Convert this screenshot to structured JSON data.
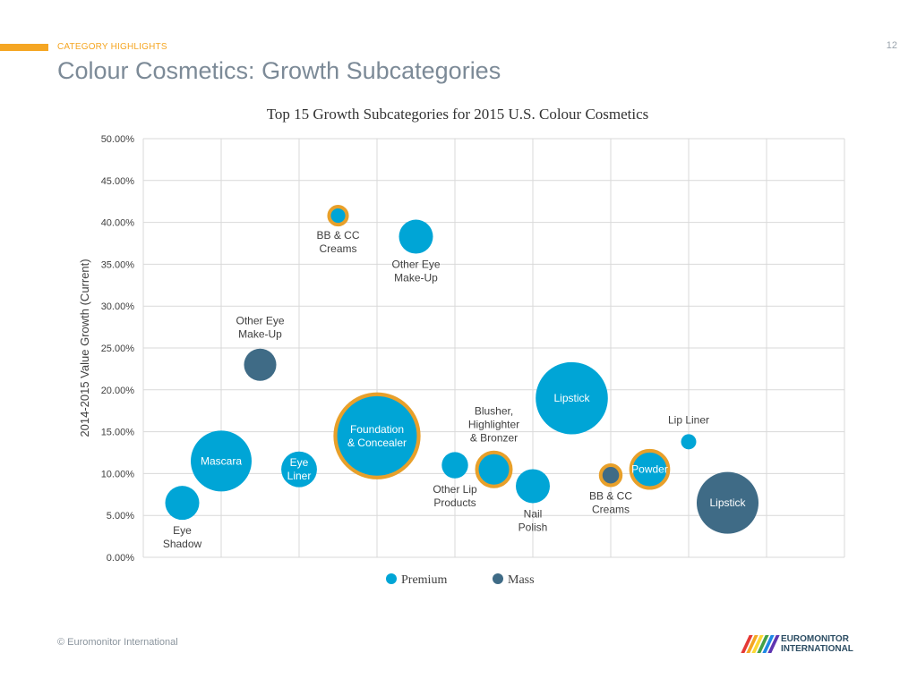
{
  "header": {
    "category": "CATEGORY HIGHLIGHTS",
    "title": "Colour Cosmetics: Growth Subcategories",
    "page_number": "12",
    "accent_color": "#F5A623"
  },
  "footer": {
    "copyright": "© Euromonitor International",
    "logo_line1": "EUROMONITOR",
    "logo_line2": "INTERNATIONAL"
  },
  "colors": {
    "premium": "#00A5D6",
    "mass": "#3F6B86",
    "highlight_ring": "#E8A02A",
    "grid": "#D9D9D9",
    "label": "#404040"
  },
  "chart_data": {
    "type": "bubble",
    "title": "Top 15 Growth Subcategories for 2015 U.S. Colour Cosmetics",
    "xlabel": "",
    "ylabel": "2014-2015 Value Growth (Current)",
    "ylim": [
      0,
      50
    ],
    "xlim": [
      0,
      9
    ],
    "y_ticks": [
      "0.00%",
      "5.00%",
      "10.00%",
      "15.00%",
      "20.00%",
      "25.00%",
      "30.00%",
      "35.00%",
      "40.00%",
      "45.00%",
      "50.00%"
    ],
    "grid": true,
    "legend": [
      "Premium",
      "Mass"
    ],
    "legend_position": "bottom",
    "points": [
      {
        "label": "Eye\nShadow",
        "x": 0.5,
        "y": 6.5,
        "size": 1.0,
        "segment": "Premium",
        "highlight": false,
        "label_pos": "below"
      },
      {
        "label": "Mascara",
        "x": 1.0,
        "y": 11.5,
        "size": 3.2,
        "segment": "Premium",
        "highlight": false,
        "label_pos": "inside"
      },
      {
        "label": "Other Eye\nMake-Up",
        "x": 1.5,
        "y": 23.0,
        "size": 0.9,
        "segment": "Mass",
        "highlight": false,
        "label_pos": "above"
      },
      {
        "label": "Eye\nLiner",
        "x": 2.0,
        "y": 10.5,
        "size": 1.1,
        "segment": "Premium",
        "highlight": false,
        "label_pos": "inside"
      },
      {
        "label": "BB & CC\nCreams",
        "x": 2.5,
        "y": 40.8,
        "size": 0.28,
        "segment": "Premium",
        "highlight": true,
        "label_pos": "below"
      },
      {
        "label": "Foundation\n& Concealer",
        "x": 3.0,
        "y": 14.5,
        "size": 6.0,
        "segment": "Premium",
        "highlight": true,
        "label_pos": "inside"
      },
      {
        "label": "Other Eye\nMake-Up",
        "x": 3.5,
        "y": 38.3,
        "size": 1.0,
        "segment": "Premium",
        "highlight": false,
        "label_pos": "below"
      },
      {
        "label": "Other Lip\nProducts",
        "x": 4.0,
        "y": 11.0,
        "size": 0.6,
        "segment": "Premium",
        "highlight": false,
        "label_pos": "below"
      },
      {
        "label": "Blusher,\nHighlighter\n& Bronzer",
        "x": 4.5,
        "y": 10.5,
        "size": 1.0,
        "segment": "Premium",
        "highlight": true,
        "label_pos": "above"
      },
      {
        "label": "Nail\nPolish",
        "x": 5.0,
        "y": 8.5,
        "size": 1.0,
        "segment": "Premium",
        "highlight": false,
        "label_pos": "below"
      },
      {
        "label": "Lipstick",
        "x": 5.5,
        "y": 19.0,
        "size": 4.5,
        "segment": "Premium",
        "highlight": false,
        "label_pos": "inside"
      },
      {
        "label": "BB & CC\nCreams",
        "x": 6.0,
        "y": 9.8,
        "size": 0.35,
        "segment": "Mass",
        "highlight": true,
        "label_pos": "below"
      },
      {
        "label": "Powder",
        "x": 6.5,
        "y": 10.5,
        "size": 1.2,
        "segment": "Premium",
        "highlight": true,
        "label_pos": "inside"
      },
      {
        "label": "Lip Liner",
        "x": 7.0,
        "y": 13.8,
        "size": 0.2,
        "segment": "Premium",
        "highlight": false,
        "label_pos": "above"
      },
      {
        "label": "Lipstick",
        "x": 7.5,
        "y": 6.5,
        "size": 3.3,
        "segment": "Mass",
        "highlight": false,
        "label_pos": "inside"
      }
    ]
  }
}
